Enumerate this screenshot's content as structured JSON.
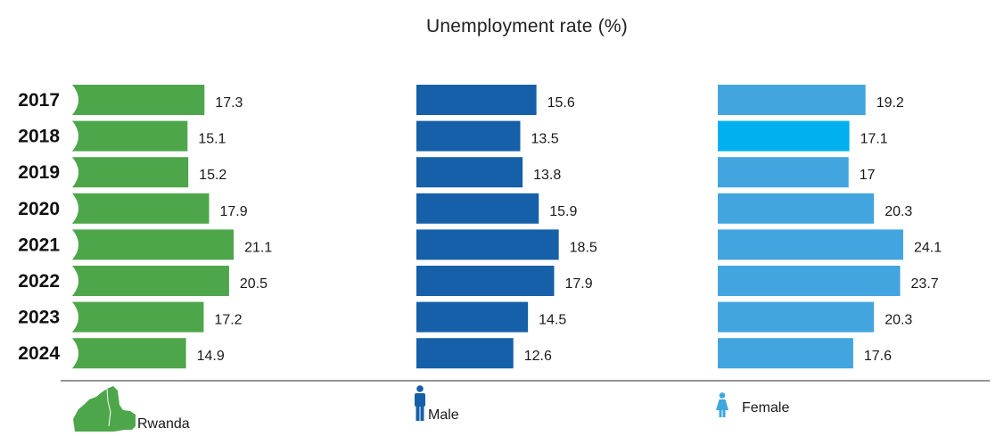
{
  "chart_data": {
    "type": "bar",
    "orientation": "horizontal",
    "title": "Unemployment rate (%)",
    "categories": [
      "2017",
      "2018",
      "2019",
      "2020",
      "2021",
      "2022",
      "2023",
      "2024"
    ],
    "series": [
      {
        "name": "Rwanda",
        "color": "#4ea64a",
        "values": [
          17.3,
          15.1,
          15.2,
          17.9,
          21.1,
          20.5,
          17.2,
          14.9
        ]
      },
      {
        "name": "Male",
        "color": "#1560a8",
        "values": [
          15.6,
          13.5,
          13.8,
          15.9,
          18.5,
          17.9,
          14.5,
          12.6
        ]
      },
      {
        "name": "Female",
        "color": "#42a5df",
        "highlight_color": "#00b0ef",
        "highlight_index": 1,
        "values": [
          19.2,
          17.1,
          17,
          20.3,
          24.1,
          23.7,
          20.3,
          17.6
        ]
      }
    ],
    "legend_placement": "bottom",
    "grid": false
  },
  "legend": {
    "rwanda_label": "Rwanda",
    "male_label": "Male",
    "female_label": "Female"
  },
  "icons": {
    "rwanda": "rwanda-map-icon",
    "male": "male-person-icon",
    "female": "female-person-icon"
  }
}
